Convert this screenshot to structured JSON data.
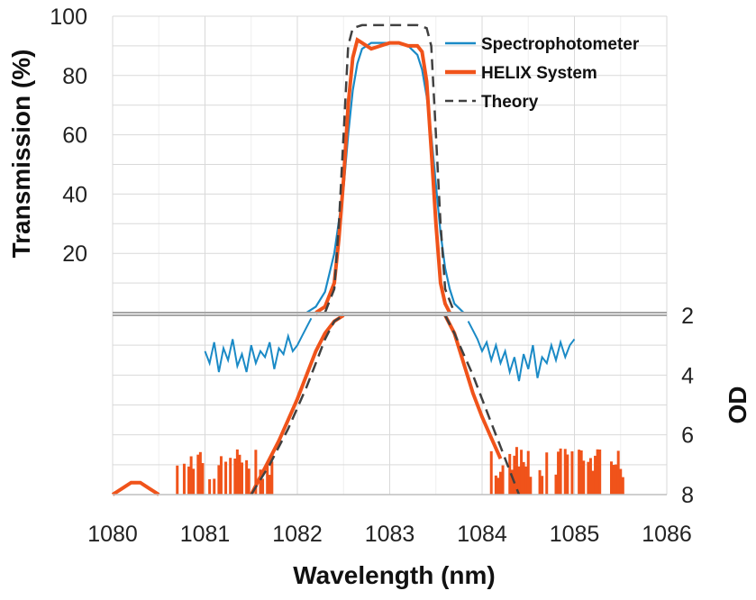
{
  "chart_data": {
    "type": "line",
    "xlabel": "Wavelength (nm)",
    "xlim": [
      1080,
      1086
    ],
    "x_ticks": [
      "1080",
      "1081",
      "1082",
      "1083",
      "1084",
      "1085",
      "1086"
    ],
    "upper_panel": {
      "ylabel": "Transmission (%)",
      "ylim": [
        0,
        100
      ],
      "y_ticks": [
        "20",
        "40",
        "60",
        "80",
        "100"
      ],
      "grid": true
    },
    "lower_panel": {
      "ylabel": "OD",
      "ylim": [
        2,
        8
      ],
      "inverted": true,
      "y_ticks": [
        "2",
        "4",
        "6",
        "8"
      ],
      "grid": true
    },
    "legend": {
      "position": "top-right",
      "entries": [
        "Spectrophotometer",
        "HELIX System",
        "Theory"
      ]
    },
    "colors": {
      "spectrophotometer": "#1a8ac6",
      "helix": "#f0531a",
      "theory": "#404040",
      "grid": "#d9d9d9",
      "divider": "#a6a6a6"
    },
    "series": [
      {
        "name": "Spectrophotometer",
        "key": "spectrophotometer",
        "transmission": {
          "x": [
            1082.1,
            1082.2,
            1082.3,
            1082.4,
            1082.5,
            1082.55,
            1082.6,
            1082.65,
            1082.7,
            1082.8,
            1082.9,
            1083.0,
            1083.1,
            1083.2,
            1083.3,
            1083.35,
            1083.4,
            1083.45,
            1083.5,
            1083.55,
            1083.6,
            1083.65,
            1083.7,
            1083.8
          ],
          "y": [
            0,
            2,
            7,
            20,
            42,
            60,
            75,
            84,
            89,
            91,
            91,
            91,
            91,
            90,
            87,
            82,
            73,
            60,
            43,
            27,
            15,
            8,
            3,
            0
          ]
        },
        "od_left": {
          "x": [
            1081.0,
            1081.05,
            1081.1,
            1081.15,
            1081.2,
            1081.25,
            1081.3,
            1081.35,
            1081.4,
            1081.45,
            1081.5,
            1081.55,
            1081.6,
            1081.65,
            1081.7,
            1081.75,
            1081.8,
            1081.85,
            1081.9,
            1081.95,
            1082.0,
            1082.05,
            1082.1,
            1082.15
          ],
          "y": [
            3.2,
            3.6,
            2.9,
            3.9,
            3.1,
            3.5,
            2.8,
            3.7,
            3.3,
            3.9,
            3.0,
            3.6,
            3.2,
            3.4,
            2.9,
            3.8,
            3.1,
            3.3,
            2.7,
            3.2,
            3.0,
            2.7,
            2.4,
            2.1
          ]
        },
        "od_right": {
          "x": [
            1083.85,
            1083.9,
            1083.95,
            1084.0,
            1084.05,
            1084.1,
            1084.15,
            1084.2,
            1084.25,
            1084.3,
            1084.35,
            1084.4,
            1084.45,
            1084.5,
            1084.55,
            1084.6,
            1084.65,
            1084.7,
            1084.75,
            1084.8,
            1084.85,
            1084.9,
            1084.95,
            1085.0
          ],
          "y": [
            2.2,
            2.5,
            2.8,
            3.2,
            2.9,
            3.5,
            3.0,
            3.6,
            3.2,
            3.9,
            3.4,
            4.2,
            3.3,
            3.8,
            3.0,
            4.1,
            3.4,
            3.6,
            3.0,
            3.5,
            2.9,
            3.4,
            3.0,
            2.8
          ]
        }
      },
      {
        "name": "HELIX System",
        "key": "helix",
        "transmission": {
          "x": [
            1082.2,
            1082.3,
            1082.4,
            1082.45,
            1082.5,
            1082.55,
            1082.6,
            1082.65,
            1082.7,
            1082.8,
            1082.9,
            1083.0,
            1083.1,
            1083.2,
            1083.3,
            1083.35,
            1083.4,
            1083.45,
            1083.5,
            1083.55,
            1083.6,
            1083.65
          ],
          "y": [
            0,
            2,
            10,
            25,
            45,
            70,
            86,
            92,
            91,
            89,
            90,
            91,
            91,
            90,
            90,
            88,
            78,
            55,
            30,
            10,
            3,
            0
          ]
        },
        "od": {
          "x": [
            1080.0,
            1080.1,
            1080.2,
            1080.3,
            1080.4,
            1080.5,
            1081.5,
            1081.6,
            1081.7,
            1081.8,
            1081.9,
            1082.0,
            1082.1,
            1082.2,
            1082.3,
            1082.4,
            1082.5,
            1083.6,
            1083.7,
            1083.8,
            1083.9,
            1084.0,
            1084.1,
            1084.2
          ],
          "y": [
            8.0,
            7.8,
            7.6,
            7.6,
            7.8,
            8.0,
            8.0,
            7.4,
            6.8,
            6.2,
            5.5,
            4.8,
            4.0,
            3.2,
            2.6,
            2.2,
            2.0,
            2.0,
            2.6,
            3.6,
            4.6,
            5.4,
            6.1,
            6.8
          ]
        },
        "noise": {
          "x_ranges": [
            [
              1080.7,
              1081.8
            ],
            [
              1084.1,
              1085.55
            ]
          ],
          "y_range": [
            6.4,
            8.0
          ]
        }
      },
      {
        "name": "Theory",
        "key": "theory",
        "transmission": {
          "x": [
            1082.3,
            1082.4,
            1082.45,
            1082.5,
            1082.55,
            1082.6,
            1082.7,
            1083.0,
            1083.3,
            1083.4,
            1083.45,
            1083.5,
            1083.55,
            1083.6,
            1083.7
          ],
          "y": [
            0,
            8,
            30,
            60,
            90,
            96,
            97,
            97,
            97,
            96,
            90,
            60,
            30,
            8,
            0
          ]
        },
        "od": {
          "x": [
            1081.5,
            1081.6,
            1081.7,
            1081.8,
            1081.9,
            1082.0,
            1082.1,
            1082.2,
            1082.3,
            1082.4,
            1082.5,
            1083.6,
            1083.7,
            1083.8,
            1083.9,
            1084.0,
            1084.1,
            1084.2,
            1084.3,
            1084.4
          ],
          "y": [
            8.0,
            7.5,
            7.0,
            6.4,
            5.8,
            5.1,
            4.4,
            3.6,
            2.8,
            2.2,
            2.0,
            2.0,
            2.6,
            3.3,
            4.0,
            4.8,
            5.6,
            6.4,
            7.2,
            8.0
          ]
        }
      }
    ]
  }
}
